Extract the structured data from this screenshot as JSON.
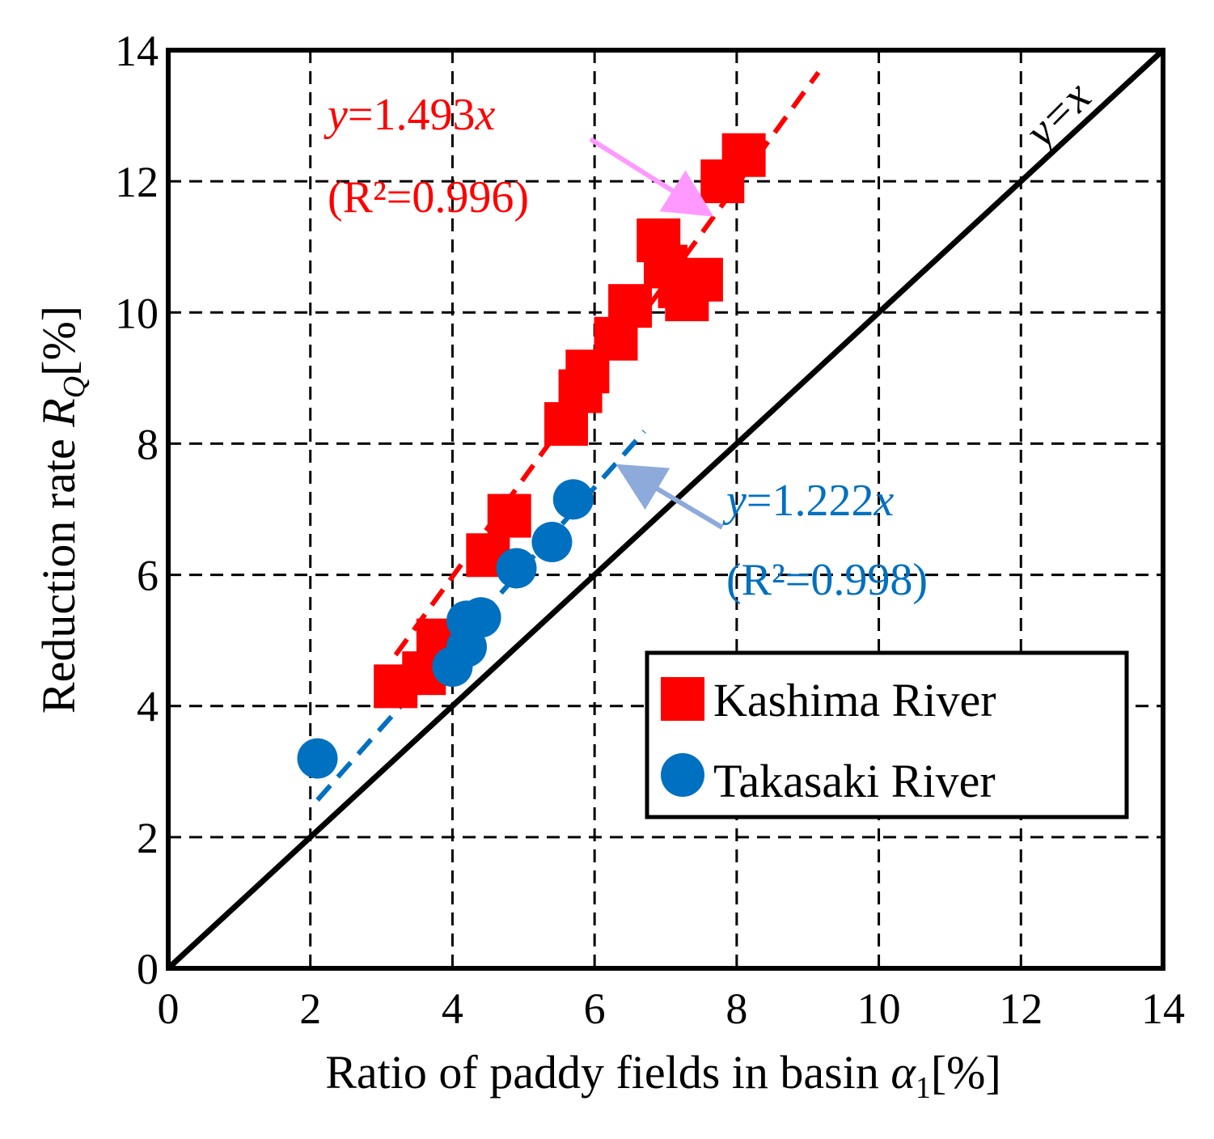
{
  "chart_data": {
    "type": "scatter",
    "xlim": [
      0,
      14
    ],
    "ylim": [
      0,
      14
    ],
    "xticks": [
      "0",
      "2",
      "4",
      "6",
      "8",
      "10",
      "12",
      "14"
    ],
    "yticks": [
      "0",
      "2",
      "4",
      "6",
      "8",
      "10",
      "12",
      "14"
    ],
    "grid": true,
    "xlabel": {
      "text": "Ratio of paddy fields in basin ",
      "symbol": "α",
      "sub": "1",
      "unit": "[%]"
    },
    "ylabel": {
      "text": "Reduction rate ",
      "symbol": "R",
      "sub": "Q",
      "unit": "[%]"
    },
    "series": [
      {
        "name": "Kashima River",
        "marker": "square",
        "color": "#ff0000",
        "points": [
          [
            3.2,
            4.3
          ],
          [
            3.6,
            4.5
          ],
          [
            3.8,
            5.0
          ],
          [
            4.5,
            6.3
          ],
          [
            4.8,
            6.9
          ],
          [
            5.6,
            8.3
          ],
          [
            5.8,
            8.8
          ],
          [
            5.9,
            9.1
          ],
          [
            6.3,
            9.6
          ],
          [
            6.5,
            10.1
          ],
          [
            6.9,
            11.1
          ],
          [
            7.0,
            10.7
          ],
          [
            7.2,
            10.4
          ],
          [
            7.3,
            10.2
          ],
          [
            7.5,
            10.5
          ],
          [
            7.8,
            12.0
          ],
          [
            8.1,
            12.4
          ]
        ],
        "fit": {
          "slope": 1.493,
          "x_range": [
            3.2,
            9.15
          ],
          "label_eq": "1.493",
          "label_r2": "(R²=0.996)"
        }
      },
      {
        "name": "Takasaki River",
        "marker": "circle",
        "color": "#0070c0",
        "points": [
          [
            2.1,
            3.2
          ],
          [
            4.0,
            4.6
          ],
          [
            4.2,
            4.9
          ],
          [
            4.2,
            5.3
          ],
          [
            4.4,
            5.35
          ],
          [
            4.9,
            6.1
          ],
          [
            5.4,
            6.5
          ],
          [
            5.7,
            7.15
          ]
        ],
        "fit": {
          "slope": 1.222,
          "x_range": [
            2.1,
            6.7
          ],
          "label_eq": "1.222",
          "label_r2": "(R²=0.998)"
        }
      }
    ],
    "reference_line": {
      "label": "y=x",
      "slope": 1
    },
    "annotations": {
      "eq_var": "y",
      "eq_sign": "=",
      "eq_suffix": "x"
    },
    "legend": {
      "position": "bottom-right",
      "entries": [
        "Kashima River",
        "Takasaki River"
      ]
    }
  }
}
